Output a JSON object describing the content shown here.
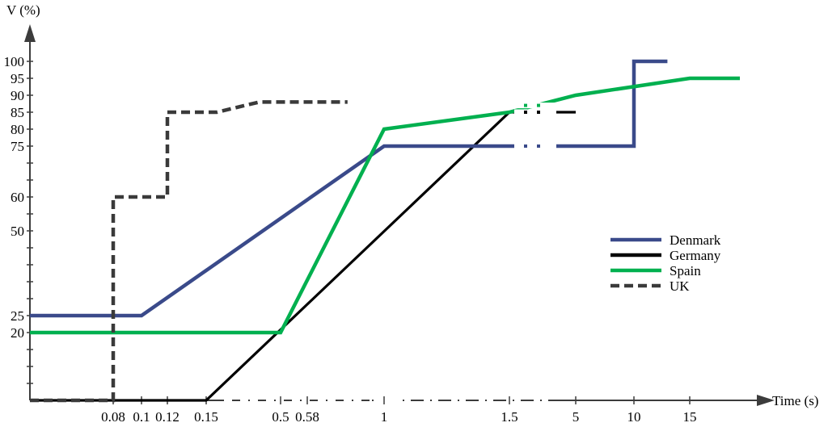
{
  "chart_data": {
    "type": "line",
    "ylabel": "V (%)",
    "xlabel": "Time (s)",
    "x_ticks": [
      "0.08",
      "0.1",
      "0.12",
      "0.15",
      "0.5",
      "0.58",
      "1",
      "1.5",
      "5",
      "10",
      "15"
    ],
    "y_ticks": [
      "20",
      "25",
      "50",
      "60",
      "75",
      "80",
      "85",
      "90",
      "95",
      "100"
    ],
    "y_range": [
      0,
      100
    ],
    "x_axis_breaks": [
      [
        0.15,
        0.5
      ],
      [
        0.58,
        1
      ],
      [
        1.5,
        5
      ]
    ],
    "legend_position": "right",
    "grid": false,
    "series": [
      {
        "name": "Denmark",
        "color": "#3a4a8a",
        "style": "solid",
        "points": [
          [
            0,
            25
          ],
          [
            0.1,
            25
          ],
          [
            1,
            75
          ],
          [
            1.5,
            75
          ],
          [
            5,
            75
          ],
          [
            10,
            75
          ],
          [
            10,
            100
          ],
          [
            13,
            100
          ]
        ]
      },
      {
        "name": "Germany",
        "color": "#000000",
        "style": "solid",
        "points": [
          [
            0,
            0
          ],
          [
            0.15,
            0
          ],
          [
            1.5,
            85
          ],
          [
            5,
            85
          ]
        ]
      },
      {
        "name": "Spain",
        "color": "#00b04f",
        "style": "solid",
        "points": [
          [
            0,
            20
          ],
          [
            0.5,
            20
          ],
          [
            1,
            80
          ],
          [
            1.5,
            85
          ],
          [
            5,
            90
          ],
          [
            15,
            95
          ],
          [
            20,
            95
          ]
        ]
      },
      {
        "name": "UK",
        "color": "#3a3a3a",
        "style": "dashed",
        "points": [
          [
            0,
            0
          ],
          [
            0.08,
            0
          ],
          [
            0.08,
            60
          ],
          [
            0.12,
            60
          ],
          [
            0.12,
            85
          ],
          [
            0.2,
            85
          ],
          [
            0.4,
            88
          ],
          [
            0.58,
            88
          ],
          [
            0.8,
            88
          ]
        ]
      }
    ]
  }
}
